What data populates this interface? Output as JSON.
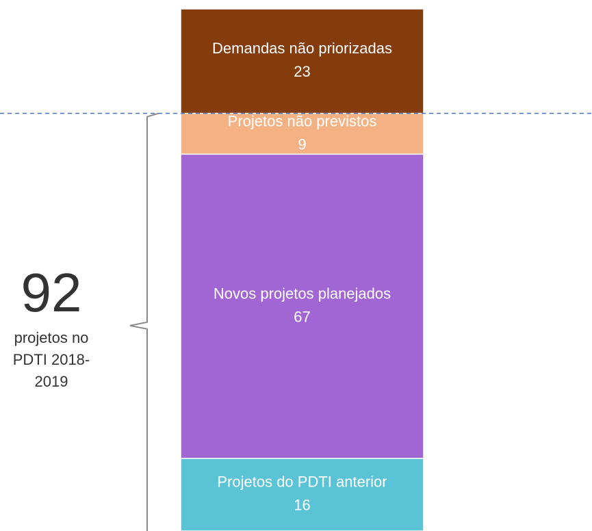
{
  "chart_data": {
    "type": "bar",
    "categories": [
      null
    ],
    "series": [
      {
        "name": "Projetos do PDTI anterior",
        "color": "#5bc3d6",
        "values": [
          16
        ]
      },
      {
        "name": "Novos projetos planejados",
        "color": "#a166d4",
        "values": [
          67
        ]
      },
      {
        "name": "Projetos não previstos",
        "color": "#f4b183",
        "values": [
          9
        ]
      },
      {
        "name": "Demandas não priorizadas",
        "color": "#843c0c",
        "values": [
          23
        ]
      }
    ],
    "annotation": {
      "total": "92",
      "text": "projetos no PDTI 2018-2019"
    }
  }
}
